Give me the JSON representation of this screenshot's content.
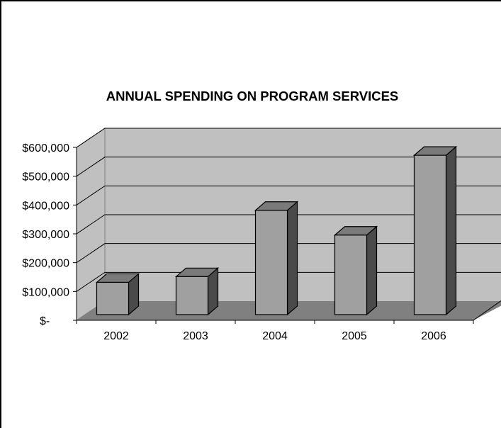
{
  "chart_data": {
    "type": "bar",
    "title": "ANNUAL SPENDING ON PROGRAM SERVICES",
    "categories": [
      "2002",
      "2003",
      "2004",
      "2005",
      "2006"
    ],
    "values": [
      112000,
      132000,
      362000,
      276000,
      553000
    ],
    "yticks": [
      "$-",
      "$100,000",
      "$200,000",
      "$300,000",
      "$400,000",
      "$500,000",
      "$600,000"
    ],
    "ylim": [
      0,
      600000
    ],
    "grid": true,
    "legend": "none",
    "colors": {
      "wall": "#c0c0c0",
      "floor": "#808080",
      "bar_front": "#a0a0a0",
      "bar_top": "#7a7a7a",
      "bar_side": "#4a4a4a"
    }
  }
}
